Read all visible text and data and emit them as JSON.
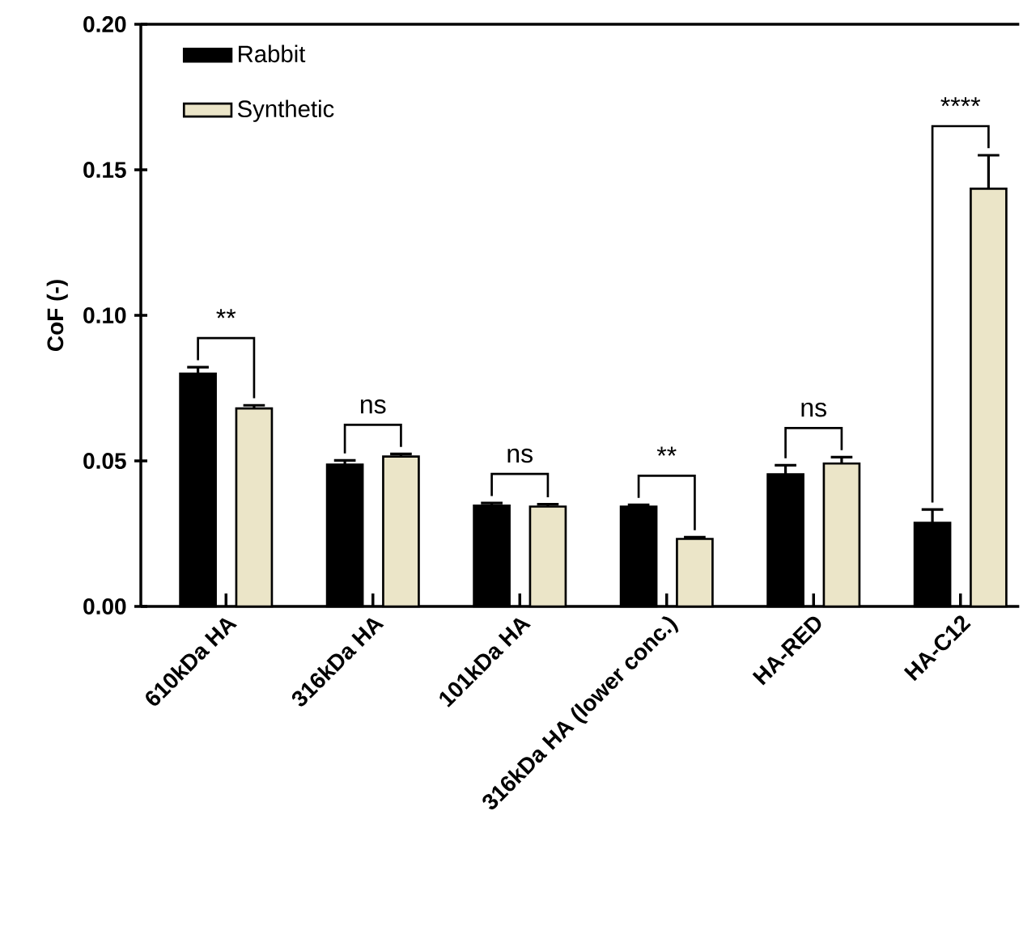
{
  "chart_data": {
    "type": "bar",
    "categories": [
      "610kDa HA",
      "316kDa HA",
      "101kDa HA",
      "316kDa HA (lower conc.)",
      "HA-RED",
      "HA-C12"
    ],
    "series": [
      {
        "name": "Rabbit",
        "color": "#000000",
        "values": [
          0.08,
          0.0487,
          0.0346,
          0.0343,
          0.0454,
          0.0287
        ],
        "errors": [
          0.0022,
          0.0015,
          0.0009,
          0.0006,
          0.0031,
          0.0046
        ]
      },
      {
        "name": "Synthetic",
        "color": "#ebe5c8",
        "values": [
          0.068,
          0.0515,
          0.0343,
          0.0232,
          0.0491,
          0.1435
        ],
        "errors": [
          0.0011,
          0.0009,
          0.0008,
          0.0006,
          0.0022,
          0.0115
        ]
      }
    ],
    "ylabel": "CoF (-)",
    "ylim": [
      0,
      0.2
    ],
    "yticks": [
      {
        "value": 0,
        "label": "0.00"
      },
      {
        "value": 0.05,
        "label": "0.05"
      },
      {
        "value": 0.1,
        "label": "0.10"
      },
      {
        "value": 0.15,
        "label": "0.15"
      },
      {
        "value": 0.2,
        "label": "0.20"
      }
    ],
    "legend": "top left",
    "annotations": [
      "**",
      "ns",
      "ns",
      "**",
      "ns",
      "****"
    ]
  }
}
